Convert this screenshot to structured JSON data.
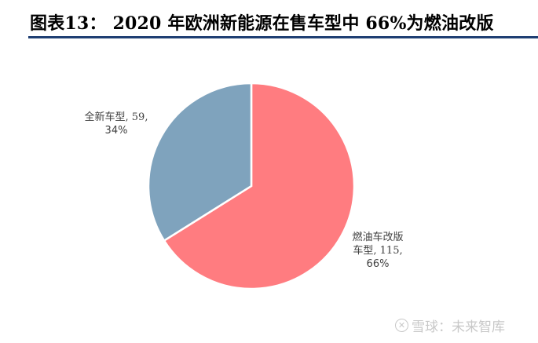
{
  "header": {
    "title": "图表13：  2020 年欧洲新能源在售车型中 66%为燃油改版"
  },
  "chart_data": {
    "type": "pie",
    "title": "2020 年欧洲新能源在售车型中 66%为燃油改版",
    "figure_label": "图表13：",
    "categories": [
      "燃油车改版车型",
      "全新车型"
    ],
    "values": [
      115,
      59
    ],
    "percentages": [
      66,
      34
    ],
    "colors": [
      "#ff7c80",
      "#7fa3bd"
    ],
    "start_angle": "12 o'clock, clockwise",
    "labels": [
      {
        "line1": "燃油车改版",
        "line2": "车型, 115,",
        "line3": "66%"
      },
      {
        "line1": "全新车型, 59,",
        "line2": "34%"
      }
    ],
    "legend": "none"
  },
  "watermark": {
    "icon": "xueqiu-logo-icon",
    "text": "雪球：未来智库"
  }
}
